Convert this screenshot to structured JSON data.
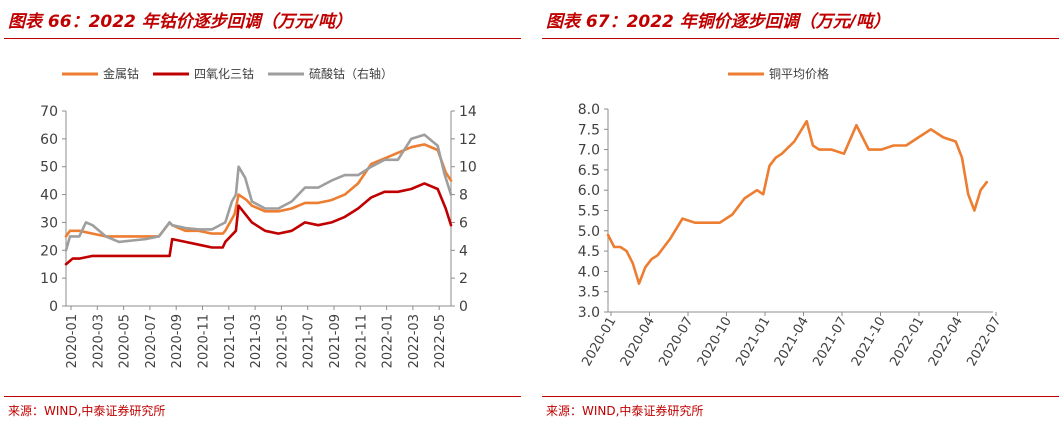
{
  "left": {
    "title": "图表 66：2022 年钴价逐步回调（万元/吨）",
    "source": "来源：WIND,中泰证券研究所",
    "chart_data": {
      "type": "line",
      "title": "2022 年钴价逐步回调（万元/吨）",
      "ylim": [
        0,
        70
      ],
      "y2lim": [
        0,
        14
      ],
      "yticks": [
        "0",
        "10",
        "20",
        "30",
        "40",
        "50",
        "60",
        "70"
      ],
      "y2ticks": [
        "0",
        "2",
        "4",
        "6",
        "8",
        "10",
        "12",
        "14"
      ],
      "xtick_labels": [
        "2020-01",
        "2020-03",
        "2020-05",
        "2020-07",
        "2020-09",
        "2020-11",
        "2021-01",
        "2021-03",
        "2021-05",
        "2021-07",
        "2021-09",
        "2021-11",
        "2022-01",
        "2022-03",
        "2022-05"
      ],
      "x_range": [
        0,
        29
      ],
      "series": [
        {
          "name": "金属钴",
          "axis": "left",
          "color": "#ed7d31",
          "x": [
            0,
            0.3,
            1,
            2,
            3,
            4,
            5,
            6,
            7,
            7.8,
            8,
            8.5,
            9,
            10,
            11,
            11.8,
            12,
            12.7,
            13,
            13.6,
            14,
            15,
            16,
            17,
            18,
            19,
            20,
            21,
            22,
            23,
            24,
            25,
            26,
            27,
            28,
            28.6,
            29
          ],
          "values": [
            25,
            27,
            27,
            26,
            25,
            25,
            25,
            25,
            25,
            30,
            29,
            28,
            27,
            27,
            26,
            26,
            27,
            33,
            40,
            38,
            36,
            34,
            34,
            35,
            37,
            37,
            38,
            40,
            44,
            51,
            53,
            55,
            57,
            58,
            56,
            48,
            45
          ]
        },
        {
          "name": "四氧化三钴",
          "axis": "left",
          "color": "#c00000",
          "x": [
            0,
            0.5,
            1,
            2,
            3,
            4,
            5,
            6,
            7,
            7.8,
            8,
            9,
            10,
            11,
            11.8,
            12,
            12.8,
            13,
            14,
            15,
            16,
            17,
            18,
            19,
            20,
            21,
            22,
            23,
            24,
            25,
            26,
            27,
            28,
            28.6,
            29
          ],
          "values": [
            15,
            17,
            17,
            18,
            18,
            18,
            18,
            18,
            18,
            18,
            24,
            23,
            22,
            21,
            21,
            23,
            27,
            36,
            30,
            27,
            26,
            27,
            30,
            29,
            30,
            32,
            35,
            39,
            41,
            41,
            42,
            44,
            42,
            35,
            29
          ]
        },
        {
          "name": "硫酸钴（右轴）",
          "axis": "right",
          "color": "#9e9e9e",
          "x": [
            0,
            0.3,
            1,
            1.5,
            2,
            3,
            4,
            5,
            6,
            7,
            7.8,
            8,
            9,
            10,
            11,
            12,
            12.5,
            12.8,
            13,
            13.5,
            14,
            15,
            16,
            17,
            18,
            19,
            20,
            21,
            22,
            23,
            24,
            25,
            26,
            27,
            28,
            28.5,
            29
          ],
          "values": [
            4,
            5,
            5,
            6,
            5.8,
            5,
            4.6,
            4.7,
            4.8,
            5,
            6,
            5.8,
            5.6,
            5.5,
            5.5,
            6,
            7.5,
            8,
            10,
            9.2,
            7.5,
            7,
            7,
            7.5,
            8.5,
            8.5,
            9,
            9.4,
            9.4,
            10,
            10.5,
            10.5,
            12,
            12.3,
            11.5,
            9.5,
            8
          ]
        }
      ]
    }
  },
  "right": {
    "title": "图表 67：2022 年铜价逐步回调（万元/吨）",
    "source": "来源：WIND,中泰证券研究所",
    "chart_data": {
      "type": "line",
      "title": "2022 年铜价逐步回调（万元/吨）",
      "ylim": [
        3.0,
        8.0
      ],
      "yticks": [
        "3.0",
        "3.5",
        "4.0",
        "4.5",
        "5.0",
        "5.5",
        "6.0",
        "6.5",
        "7.0",
        "7.5",
        "8.0"
      ],
      "xtick_labels": [
        "2020-01",
        "2020-04",
        "2020-07",
        "2020-10",
        "2021-01",
        "2021-04",
        "2021-07",
        "2021-10",
        "2022-01",
        "2022-04",
        "2022-07"
      ],
      "x_range": [
        0,
        31
      ],
      "series": [
        {
          "name": "铜平均价格",
          "axis": "left",
          "color": "#ed7d31",
          "x": [
            0,
            0.5,
            1,
            1.5,
            2,
            2.5,
            3,
            3.5,
            4,
            5,
            6,
            7,
            8,
            9,
            10,
            11,
            12,
            12.5,
            13,
            13.5,
            14,
            15,
            16,
            16.5,
            17,
            18,
            19,
            20,
            21,
            22,
            23,
            24,
            25,
            26,
            27,
            28,
            28.5,
            29,
            29.5,
            30,
            30.5
          ],
          "values": [
            4.9,
            4.6,
            4.6,
            4.5,
            4.2,
            3.7,
            4.1,
            4.3,
            4.4,
            4.8,
            5.3,
            5.2,
            5.2,
            5.2,
            5.4,
            5.8,
            6.0,
            5.9,
            6.6,
            6.8,
            6.9,
            7.2,
            7.7,
            7.1,
            7.0,
            7.0,
            6.9,
            7.6,
            7.0,
            7.0,
            7.1,
            7.1,
            7.3,
            7.5,
            7.3,
            7.2,
            6.8,
            5.9,
            5.5,
            6.0,
            6.2
          ]
        }
      ]
    }
  }
}
